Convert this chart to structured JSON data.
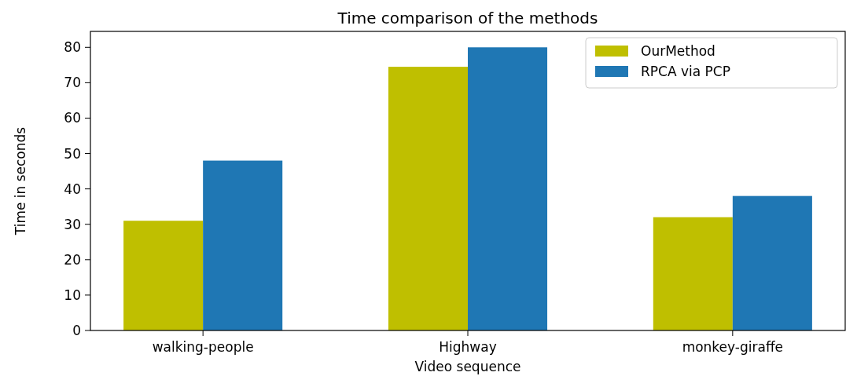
{
  "chart_data": {
    "type": "bar",
    "title": "Time comparison of the methods",
    "xlabel": "Video sequence",
    "ylabel": "Time in seconds",
    "categories": [
      "walking-people",
      "Highway",
      "monkey-giraffe"
    ],
    "series": [
      {
        "name": "OurMethod",
        "color": "#bfbf00",
        "values": [
          31,
          74.5,
          32
        ]
      },
      {
        "name": "RPCA via PCP",
        "color": "#1f77b4",
        "values": [
          48,
          80,
          38
        ]
      }
    ],
    "ylim": [
      0,
      84.5
    ],
    "yticks": [
      0,
      10,
      20,
      30,
      40,
      50,
      60,
      70,
      80
    ],
    "legend": "top right"
  }
}
